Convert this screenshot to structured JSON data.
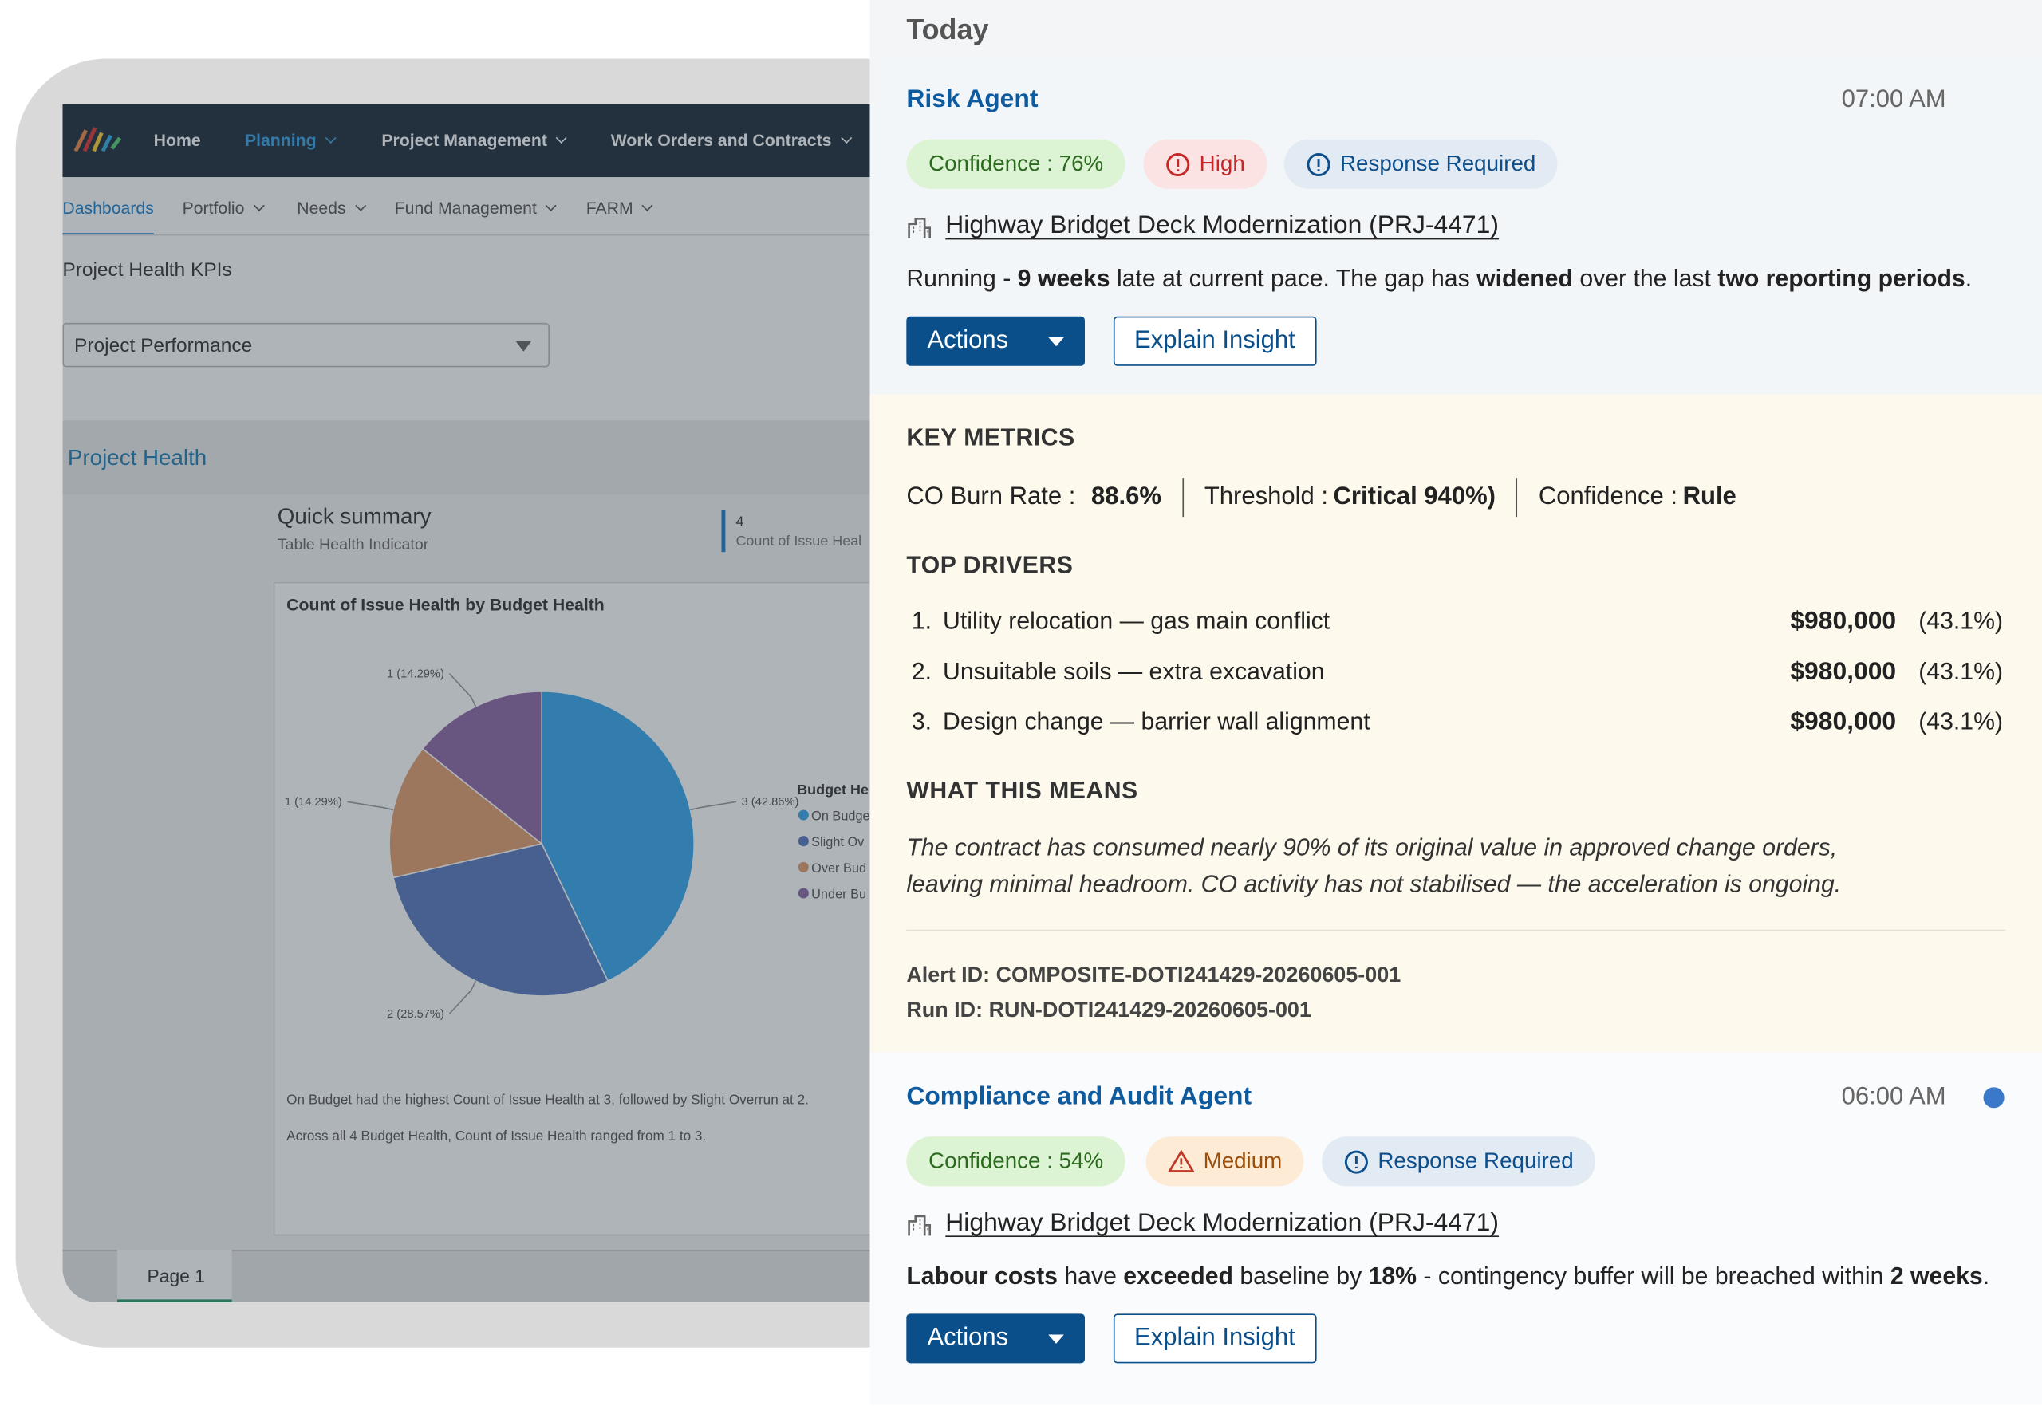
{
  "dashboard": {
    "nav": [
      "Home",
      "Planning",
      "Project Management",
      "Work Orders and Contracts"
    ],
    "subnav": [
      "Dashboards",
      "Portfolio",
      "Needs",
      "Fund Management",
      "FARM"
    ],
    "page_title": "Project Health KPIs",
    "dropdown": "Project Performance",
    "section": "Project Health",
    "summary": {
      "title": "Quick summary",
      "subtitle": "Table Health Indicator",
      "kpi_value": 4,
      "kpi_label": "Count of Issue Heal"
    },
    "notes": [
      "On Budget had the highest Count of Issue Health at 3, followed by Slight Overrun at 2.",
      "Across all 4 Budget Health, Count of Issue Health ranged from 1 to 3."
    ],
    "tab": "Page 1"
  },
  "chart_data": {
    "type": "pie",
    "title": "Count of Issue Health by Budget Health",
    "legend_title": "Budget He",
    "categories": [
      "On Budge",
      "Slight Ov",
      "Over Bud",
      "Under Bu"
    ],
    "values": [
      3,
      2,
      1,
      1
    ],
    "value_labels": [
      "3 (42.86%)",
      "2 (28.57%)",
      "1 (14.29%)",
      "1 (14.29%)"
    ],
    "colors": [
      "#36a6ec",
      "#5778bd",
      "#e29c6c",
      "#8d66a4"
    ]
  },
  "feed": {
    "heading": "Today",
    "alerts": [
      {
        "title": "Risk Agent",
        "time": "07:00 AM",
        "confidence": "Confidence : 76%",
        "severity": "High",
        "response": "Response Required",
        "project": "Highway Bridget Deck Modernization (PRJ-4471)",
        "description": [
          {
            "text": "Running - "
          },
          {
            "text": "9 weeks",
            "bold": true
          },
          {
            "text": " late at current pace. The gap has "
          },
          {
            "text": "widened",
            "bold": true
          },
          {
            "text": " over the last "
          },
          {
            "text": "two reporting periods",
            "bold": true
          },
          {
            "text": "."
          }
        ],
        "actions": "Actions",
        "explain": "Explain Insight",
        "details": {
          "key_metrics": "KEY METRICS",
          "metrics": [
            {
              "label": "CO Burn Rate :",
              "value": "88.6%"
            },
            {
              "label": "Threshold :",
              "value": "Critical 940%)"
            },
            {
              "label": "Confidence :",
              "value": "Rule"
            }
          ],
          "top_drivers": "TOP DRIVERS",
          "drivers": [
            {
              "label": "Utility relocation — gas main conflict",
              "amount": "$980,000",
              "share": "(43.1%)"
            },
            {
              "label": "Unsuitable soils — extra excavation",
              "amount": "$980,000",
              "share": "(43.1%)"
            },
            {
              "label": "Design change — barrier wall alignment",
              "amount": "$980,000",
              "share": "(43.1%)"
            }
          ],
          "what_this_means": "WHAT THIS MEANS",
          "meaning": [
            "The contract has consumed nearly 90% of its original value in approved change orders,",
            "leaving minimal headroom. CO activity has not stabilised — the acceleration is ongoing."
          ],
          "alert_id": "Alert ID: COMPOSITE-DOTI241429-20260605-001",
          "run_id": "Run ID: RUN-DOTI241429-20260605-001"
        }
      },
      {
        "title": "Compliance and Audit Agent",
        "time": "06:00 AM",
        "confidence": "Confidence : 54%",
        "severity": "Medium",
        "response": "Response Required",
        "project": "Highway Bridget Deck Modernization (PRJ-4471)",
        "description": [
          {
            "text": "Labour costs",
            "bold": true
          },
          {
            "text": " have "
          },
          {
            "text": "exceeded",
            "bold": true
          },
          {
            "text": " baseline by "
          },
          {
            "text": "18%",
            "bold": true
          },
          {
            "text": " - contingency buffer will be breached within "
          },
          {
            "text": "2 weeks",
            "bold": true
          },
          {
            "text": "."
          }
        ],
        "actions": "Actions",
        "explain": "Explain Insight"
      }
    ]
  }
}
